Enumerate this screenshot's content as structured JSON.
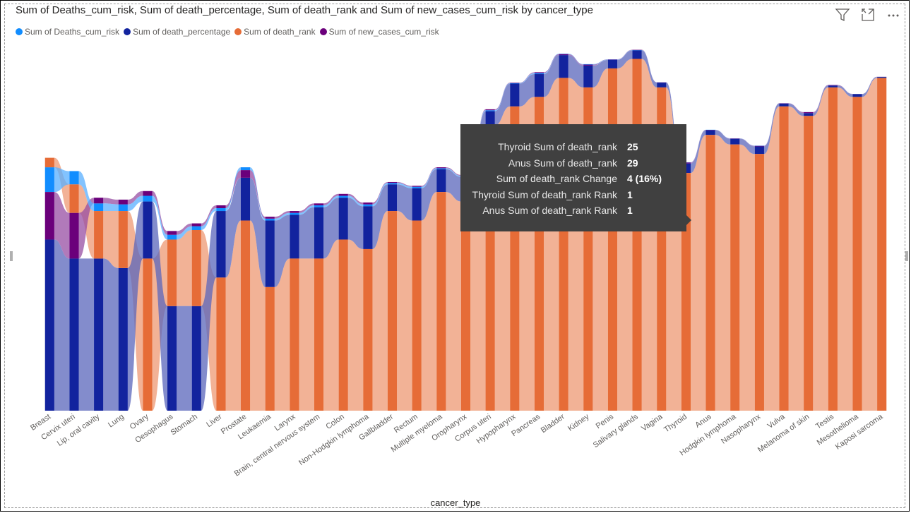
{
  "chart_data": {
    "type": "ribbon",
    "title": "Sum of Deaths_cum_risk, Sum of death_percentage, Sum of death_rank and Sum of new_cases_cum_risk by cancer_type",
    "xlabel": "cancer_type",
    "ylabel": "",
    "legend_position": "top-left",
    "categories": [
      "Breast",
      "Cervix uteri",
      "Lip, oral cavity",
      "Lung",
      "Ovary",
      "Oesophagus",
      "Stomach",
      "Liver",
      "Prostate",
      "Leukaemia",
      "Larynx",
      "Brain, central nervous system",
      "Colon",
      "Non-Hodgkin lymphoma",
      "Gallbladder",
      "Rectum",
      "Multiple myeloma",
      "Oropharynx",
      "Corpus uteri",
      "Hypopharynx",
      "Pancreas",
      "Bladder",
      "Kidney",
      "Penis",
      "Salivary glands",
      "Vagina",
      "Thyroid",
      "Anus",
      "Hodgkin lymphoma",
      "Nasopharynx",
      "Vulva",
      "Melanoma of skin",
      "Testis",
      "Mesothelioma",
      "Kaposi sarcoma"
    ],
    "series": [
      {
        "name": "Sum of Deaths_cum_risk",
        "color": "#118DFF",
        "values": [
          2.6,
          1.4,
          0.8,
          0.7,
          0.6,
          0.5,
          0.4,
          0.3,
          0.3,
          0.2,
          0.2,
          0.2,
          0.2,
          0.2,
          0.15,
          0.15,
          0.1,
          0.1,
          0.1,
          0.05,
          0.1,
          0.05,
          0.05,
          0.03,
          0.03,
          0.02,
          0.03,
          0.02,
          0.02,
          0.03,
          0.01,
          0.01,
          0.01,
          0.01,
          0.01
        ]
      },
      {
        "name": "Sum of death_percentage",
        "color": "#12239E",
        "values": [
          18,
          16,
          16,
          15,
          6,
          11,
          11,
          7,
          4.5,
          7,
          4.6,
          5.4,
          4.4,
          4.5,
          2.8,
          3.4,
          2.4,
          2.6,
          1.5,
          2.4,
          2.4,
          2.4,
          2.3,
          0.9,
          0.9,
          0.5,
          1.0,
          0.5,
          0.6,
          0.8,
          0.3,
          0.3,
          0.2,
          0.3,
          0.1
        ]
      },
      {
        "name": "Sum of death_rank",
        "color": "#E66C37",
        "values": [
          1,
          3,
          5,
          6,
          16,
          7,
          8,
          14,
          20,
          13,
          16,
          16,
          18,
          17,
          21,
          20,
          23,
          22,
          30,
          32,
          33,
          35,
          34,
          36,
          37,
          34,
          25,
          29,
          28,
          27,
          32,
          31,
          34,
          33,
          35
        ]
      },
      {
        "name": "Sum of new_cases_cum_risk",
        "color": "#6B007B",
        "values": [
          5.0,
          4.8,
          0.6,
          0.5,
          0.5,
          0.4,
          0.3,
          0.3,
          0.8,
          0.2,
          0.2,
          0.2,
          0.2,
          0.2,
          0.1,
          0.1,
          0.1,
          0.1,
          0.1,
          0.05,
          0.1,
          0.1,
          0.1,
          0.03,
          0.03,
          0.03,
          0.1,
          0.03,
          0.03,
          0.05,
          0.03,
          0.1,
          0.05,
          0.01,
          0.01
        ]
      }
    ],
    "ylim": [
      0,
      38
    ]
  },
  "tooltip": {
    "rows": [
      {
        "label": "Thyroid Sum of death_rank",
        "value": "25"
      },
      {
        "label": "Anus Sum of death_rank",
        "value": "29"
      },
      {
        "label": "Sum of death_rank Change",
        "value": "4 (16%)"
      },
      {
        "label": "Thyroid Sum of death_rank Rank",
        "value": "1"
      },
      {
        "label": "Anus Sum of death_rank Rank",
        "value": "1"
      }
    ]
  },
  "icons": [
    "filter-icon",
    "focus-mode-icon",
    "more-options-icon"
  ]
}
